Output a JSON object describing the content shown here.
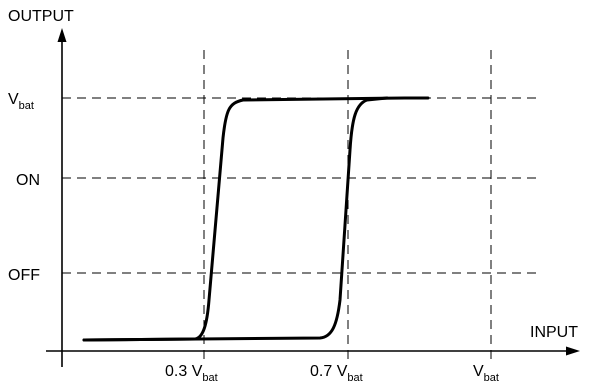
{
  "diagram": {
    "y_axis_label": "OUTPUT",
    "x_axis_label": "INPUT",
    "y_levels": [
      {
        "main": "V",
        "sub": "bat"
      },
      {
        "main": "ON",
        "sub": ""
      },
      {
        "main": "OFF",
        "sub": ""
      }
    ],
    "x_ticks": [
      {
        "main": "0.3 V",
        "sub": "bat"
      },
      {
        "main": "0.7 V",
        "sub": "bat"
      },
      {
        "main": "V",
        "sub": "bat"
      }
    ]
  }
}
